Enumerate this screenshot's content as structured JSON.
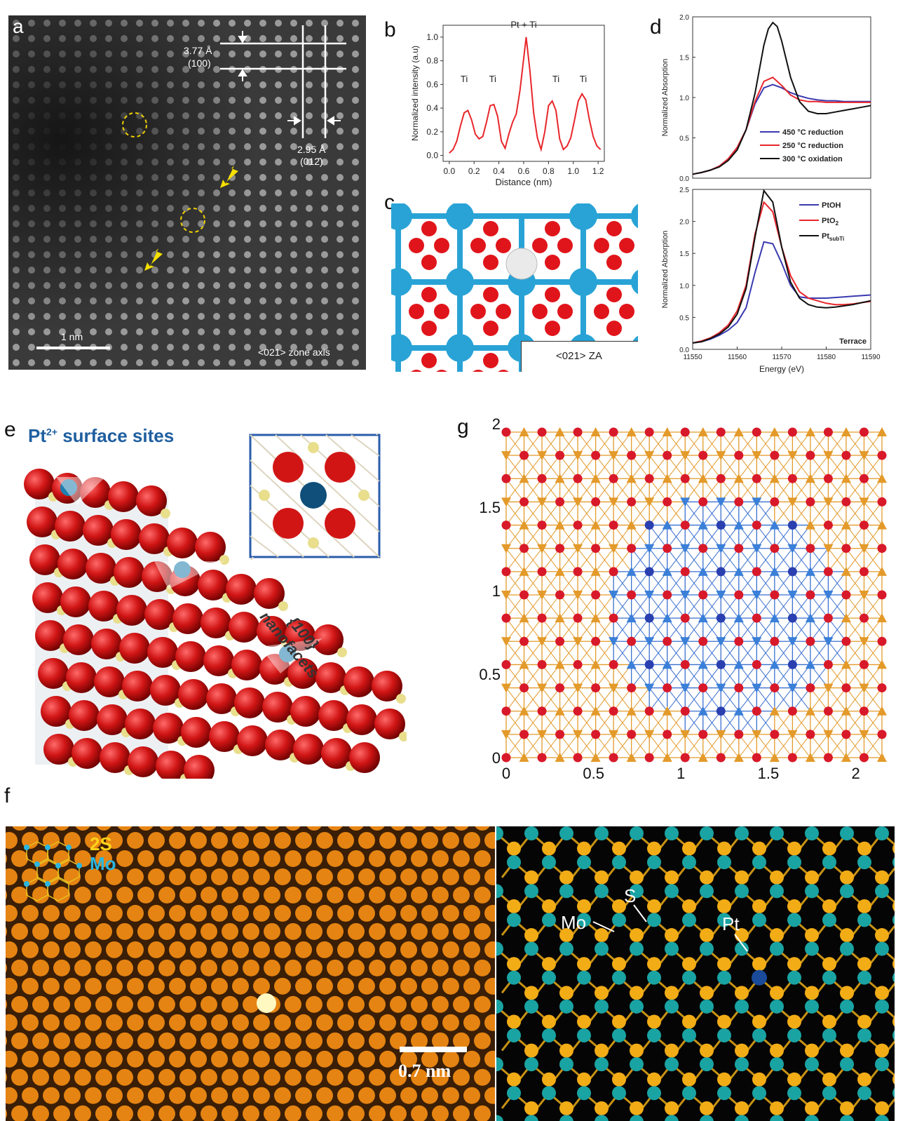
{
  "panels": {
    "a": {
      "label": "a",
      "spacing1": "3.77 Å",
      "plane1": "(100)",
      "spacing2": "2.95 Å",
      "plane2": "(012̄)",
      "scale_bar": "1 nm",
      "zone_axis": "<021> zone axis"
    },
    "b": {
      "label": "b"
    },
    "c": {
      "label": "c",
      "zone_axis": "<021> ZA"
    },
    "d": {
      "label": "d",
      "terrace": "Terrace"
    },
    "e": {
      "label": "e",
      "title_prefix": "Pt",
      "title_sup": "2+",
      "title_suffix": " surface sites",
      "facet_line1": "{100}",
      "facet_line2": "nanofacets"
    },
    "f": {
      "label": "f",
      "legend_s": "2S",
      "legend_mo": "Mo",
      "scale_bar": "0.7 nm",
      "mo_label": "Mo",
      "s_label": "S",
      "pt_label": "Pt"
    },
    "g": {
      "label": "g"
    }
  },
  "chart_data": [
    {
      "id": "b",
      "type": "line",
      "xlabel": "Distance (nm)",
      "ylabel": "Normalized intensity (a.u)",
      "xlim": [
        -0.05,
        1.25
      ],
      "ylim": [
        -0.05,
        1.1
      ],
      "xticks": [
        "0.0",
        "0.2",
        "0.4",
        "0.6",
        "0.8",
        "1.0",
        "1.2"
      ],
      "yticks": [
        "0.0",
        "0.2",
        "0.4",
        "0.6",
        "0.8",
        "1.0"
      ],
      "series": [
        {
          "color": "#e8262b",
          "x": [
            0.0,
            0.03,
            0.06,
            0.09,
            0.12,
            0.15,
            0.18,
            0.21,
            0.24,
            0.27,
            0.3,
            0.33,
            0.36,
            0.39,
            0.42,
            0.45,
            0.48,
            0.51,
            0.54,
            0.57,
            0.6,
            0.62,
            0.65,
            0.68,
            0.71,
            0.74,
            0.77,
            0.8,
            0.83,
            0.86,
            0.89,
            0.92,
            0.95,
            0.98,
            1.01,
            1.04,
            1.07,
            1.1,
            1.13,
            1.16,
            1.19,
            1.22
          ],
          "y": [
            0.02,
            0.05,
            0.12,
            0.25,
            0.36,
            0.38,
            0.3,
            0.18,
            0.14,
            0.16,
            0.28,
            0.42,
            0.43,
            0.33,
            0.12,
            0.06,
            0.18,
            0.28,
            0.35,
            0.55,
            0.82,
            1.0,
            0.72,
            0.36,
            0.15,
            0.05,
            0.2,
            0.42,
            0.46,
            0.38,
            0.14,
            0.05,
            0.08,
            0.15,
            0.3,
            0.46,
            0.52,
            0.47,
            0.3,
            0.16,
            0.08,
            0.05
          ]
        }
      ],
      "annotations": [
        {
          "text": "Pt + Ti",
          "x": 0.6,
          "y": 1.08
        },
        {
          "text": "Ti",
          "x": 0.12,
          "y": 0.62
        },
        {
          "text": "Ti",
          "x": 0.35,
          "y": 0.62
        },
        {
          "text": "Ti",
          "x": 0.86,
          "y": 0.62
        },
        {
          "text": "Ti",
          "x": 1.08,
          "y": 0.62
        }
      ]
    },
    {
      "id": "d-top",
      "type": "line",
      "xlabel": "",
      "ylabel": "Normalized Absorption",
      "xlim": [
        11550,
        11590
      ],
      "ylim": [
        0,
        2.0
      ],
      "yticks": [
        "0.0",
        "0.5",
        "1.0",
        "1.5",
        "2.0"
      ],
      "series": [
        {
          "name": "450 °C reduction",
          "color": "#3a3ab0",
          "x": [
            11550,
            11552,
            11554,
            11556,
            11558,
            11560,
            11562,
            11564,
            11566,
            11568,
            11570,
            11572,
            11574,
            11576,
            11578,
            11580,
            11582,
            11584,
            11586,
            11588,
            11590
          ],
          "y": [
            0.05,
            0.07,
            0.1,
            0.15,
            0.24,
            0.38,
            0.6,
            0.92,
            1.12,
            1.16,
            1.12,
            1.06,
            1.02,
            0.99,
            0.97,
            0.96,
            0.96,
            0.95,
            0.95,
            0.95,
            0.95
          ]
        },
        {
          "name": "250 °C reduction",
          "color": "#e8262b",
          "x": [
            11550,
            11552,
            11554,
            11556,
            11558,
            11560,
            11562,
            11564,
            11566,
            11568,
            11570,
            11572,
            11574,
            11576,
            11578,
            11580,
            11582,
            11584,
            11586,
            11588,
            11590
          ],
          "y": [
            0.05,
            0.07,
            0.1,
            0.15,
            0.24,
            0.38,
            0.6,
            0.95,
            1.2,
            1.25,
            1.15,
            1.03,
            0.97,
            0.95,
            0.95,
            0.94,
            0.94,
            0.94,
            0.94,
            0.94,
            0.94
          ]
        },
        {
          "name": "300 °C oxidation",
          "color": "#111111",
          "x": [
            11550,
            11552,
            11554,
            11556,
            11558,
            11560,
            11562,
            11564,
            11566,
            11567,
            11568,
            11569,
            11570,
            11572,
            11574,
            11576,
            11578,
            11580,
            11582,
            11584,
            11586,
            11588,
            11590
          ],
          "y": [
            0.05,
            0.07,
            0.1,
            0.14,
            0.22,
            0.35,
            0.6,
            1.05,
            1.65,
            1.85,
            1.93,
            1.88,
            1.7,
            1.25,
            0.95,
            0.83,
            0.8,
            0.8,
            0.82,
            0.84,
            0.86,
            0.88,
            0.9
          ]
        }
      ]
    },
    {
      "id": "d-bottom",
      "type": "line",
      "xlabel": "Energy (eV)",
      "ylabel": "Normalized Absorption",
      "xlim": [
        11550,
        11590
      ],
      "ylim": [
        0,
        2.5
      ],
      "xticks": [
        "11550",
        "11560",
        "11570",
        "11580",
        "11590"
      ],
      "yticks": [
        "0.0",
        "0.5",
        "1.0",
        "1.5",
        "2.0",
        "2.5"
      ],
      "series": [
        {
          "name": "PtOH",
          "color": "#3a3ab0",
          "x": [
            11550,
            11552,
            11554,
            11556,
            11558,
            11560,
            11562,
            11564,
            11566,
            11568,
            11570,
            11572,
            11574,
            11576,
            11578,
            11580,
            11582,
            11584,
            11586,
            11588,
            11590
          ],
          "y": [
            0.1,
            0.12,
            0.16,
            0.22,
            0.3,
            0.42,
            0.65,
            1.2,
            1.68,
            1.65,
            1.35,
            1.0,
            0.82,
            0.8,
            0.8,
            0.8,
            0.81,
            0.82,
            0.83,
            0.84,
            0.85
          ]
        },
        {
          "name": "PtO2",
          "color": "#e8262b",
          "x": [
            11550,
            11552,
            11554,
            11556,
            11558,
            11560,
            11562,
            11564,
            11566,
            11568,
            11570,
            11572,
            11574,
            11576,
            11578,
            11580,
            11582,
            11584,
            11586,
            11588,
            11590
          ],
          "y": [
            0.1,
            0.13,
            0.18,
            0.26,
            0.38,
            0.6,
            1.0,
            1.8,
            2.3,
            2.15,
            1.6,
            1.15,
            0.9,
            0.8,
            0.76,
            0.72,
            0.7,
            0.7,
            0.71,
            0.73,
            0.75
          ]
        },
        {
          "name": "Pt_subTi",
          "color": "#111111",
          "x": [
            11550,
            11552,
            11554,
            11556,
            11558,
            11560,
            11562,
            11564,
            11566,
            11568,
            11570,
            11572,
            11574,
            11576,
            11578,
            11580,
            11582,
            11584,
            11586,
            11588,
            11590
          ],
          "y": [
            0.1,
            0.12,
            0.17,
            0.24,
            0.35,
            0.55,
            0.95,
            1.75,
            2.48,
            2.3,
            1.6,
            1.05,
            0.8,
            0.7,
            0.66,
            0.65,
            0.66,
            0.68,
            0.7,
            0.73,
            0.76
          ]
        }
      ],
      "legend_labels": [
        "PtOH",
        "PtO",
        "2",
        "Pt",
        "subTi"
      ]
    },
    {
      "id": "g",
      "type": "scatter",
      "xlim": [
        0,
        2.15
      ],
      "ylim": [
        0,
        1.95
      ],
      "xticks": [
        "0",
        "0.5",
        "1",
        "1.5",
        "2"
      ],
      "yticks": [
        "0",
        "0.5",
        "1",
        "1.5",
        "2"
      ],
      "series": [
        {
          "name": "lattice",
          "columns": 22,
          "rows": 15
        }
      ]
    }
  ]
}
